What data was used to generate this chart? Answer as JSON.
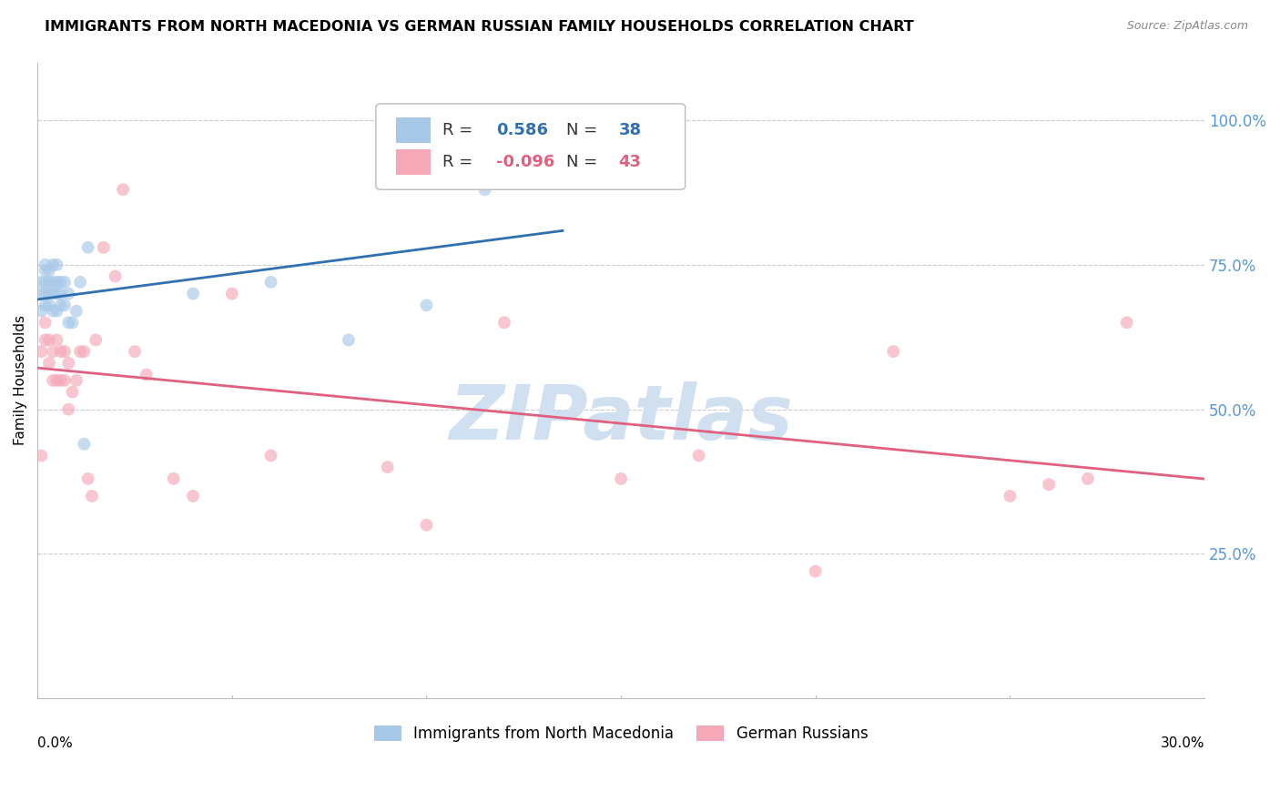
{
  "title": "IMMIGRANTS FROM NORTH MACEDONIA VS GERMAN RUSSIAN FAMILY HOUSEHOLDS CORRELATION CHART",
  "source": "Source: ZipAtlas.com",
  "ylabel": "Family Households",
  "right_yticks": [
    "100.0%",
    "75.0%",
    "50.0%",
    "25.0%"
  ],
  "right_ytick_vals": [
    1.0,
    0.75,
    0.5,
    0.25
  ],
  "ylim": [
    0.0,
    1.1
  ],
  "xlim": [
    0.0,
    0.3
  ],
  "blue_color": "#A8C8E8",
  "pink_color": "#F4A8B8",
  "blue_line_color": "#3070B0",
  "pink_line_color": "#E06080",
  "marker_size": 100,
  "marker_alpha": 0.65,
  "background_color": "#FFFFFF",
  "grid_color": "#CCCCCC",
  "axis_color": "#BBBBBB",
  "right_axis_color": "#5599DD",
  "title_fontsize": 11.5,
  "watermark": "ZIPatlas",
  "watermark_color": "#D0E0F0",
  "watermark_fontsize": 60,
  "blue_scatter_x": [
    0.001,
    0.001,
    0.001,
    0.002,
    0.002,
    0.002,
    0.002,
    0.002,
    0.003,
    0.003,
    0.003,
    0.003,
    0.004,
    0.004,
    0.004,
    0.004,
    0.005,
    0.005,
    0.005,
    0.005,
    0.006,
    0.006,
    0.006,
    0.007,
    0.007,
    0.008,
    0.008,
    0.009,
    0.01,
    0.011,
    0.012,
    0.013,
    0.04,
    0.06,
    0.08,
    0.1,
    0.115,
    0.13
  ],
  "blue_scatter_y": [
    0.67,
    0.7,
    0.72,
    0.68,
    0.7,
    0.72,
    0.74,
    0.75,
    0.68,
    0.7,
    0.72,
    0.74,
    0.67,
    0.7,
    0.72,
    0.75,
    0.67,
    0.7,
    0.72,
    0.75,
    0.68,
    0.7,
    0.72,
    0.68,
    0.72,
    0.65,
    0.7,
    0.65,
    0.67,
    0.72,
    0.44,
    0.78,
    0.7,
    0.72,
    0.62,
    0.68,
    0.88,
    0.92
  ],
  "pink_scatter_x": [
    0.001,
    0.001,
    0.002,
    0.002,
    0.003,
    0.003,
    0.004,
    0.004,
    0.005,
    0.005,
    0.006,
    0.006,
    0.007,
    0.007,
    0.008,
    0.008,
    0.009,
    0.01,
    0.011,
    0.012,
    0.013,
    0.014,
    0.015,
    0.017,
    0.02,
    0.022,
    0.025,
    0.028,
    0.035,
    0.04,
    0.05,
    0.06,
    0.09,
    0.1,
    0.12,
    0.15,
    0.17,
    0.2,
    0.22,
    0.25,
    0.26,
    0.27,
    0.28
  ],
  "pink_scatter_y": [
    0.42,
    0.6,
    0.62,
    0.65,
    0.58,
    0.62,
    0.55,
    0.6,
    0.55,
    0.62,
    0.55,
    0.6,
    0.55,
    0.6,
    0.5,
    0.58,
    0.53,
    0.55,
    0.6,
    0.6,
    0.38,
    0.35,
    0.62,
    0.78,
    0.73,
    0.88,
    0.6,
    0.56,
    0.38,
    0.35,
    0.7,
    0.42,
    0.4,
    0.3,
    0.65,
    0.38,
    0.42,
    0.22,
    0.6,
    0.35,
    0.37,
    0.38,
    0.65
  ],
  "blue_line_x_start": 0.0,
  "blue_line_x_end": 0.135,
  "pink_line_x_start": 0.0,
  "pink_line_x_end": 0.3
}
